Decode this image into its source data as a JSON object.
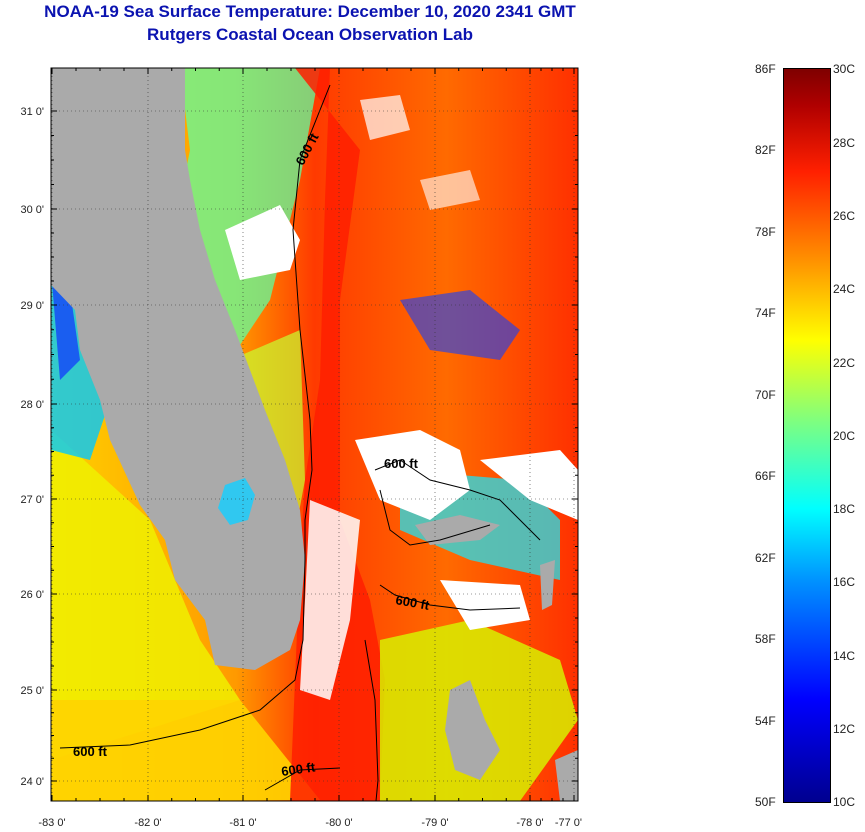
{
  "title": {
    "line1": "NOAA-19 Sea Surface Temperature:  December 10, 2020 2341 GMT",
    "line2": "Rutgers Coastal Ocean Observation Lab"
  },
  "axes": {
    "lon_labels": [
      "-83 0'",
      "-82 0'",
      "-81 0'",
      "-80 0'",
      "-79 0'",
      "-78 0'",
      "-77 0'"
    ],
    "lat_labels": [
      "31 0'",
      "30 0'",
      "29 0'",
      "28 0'",
      "27 0'",
      "26 0'",
      "25 0'",
      "24 0'"
    ]
  },
  "contours": {
    "label": "600 ft",
    "count": 5
  },
  "colorbar": {
    "fahrenheit": [
      "86F",
      "82F",
      "78F",
      "74F",
      "70F",
      "66F",
      "62F",
      "58F",
      "54F",
      "50F"
    ],
    "celsius": [
      "30C",
      "28C",
      "26C",
      "24C",
      "22C",
      "20C",
      "18C",
      "16C",
      "14C",
      "12C",
      "10C"
    ],
    "colors": [
      "#00008f",
      "#0000ff",
      "#0090ff",
      "#00ffff",
      "#7fff7f",
      "#ffff00",
      "#ff9000",
      "#ff2000",
      "#b00000",
      "#7f0000"
    ]
  },
  "legend": {
    "land_color": "#aaaaaa",
    "cloud_color": "#ffffff"
  }
}
